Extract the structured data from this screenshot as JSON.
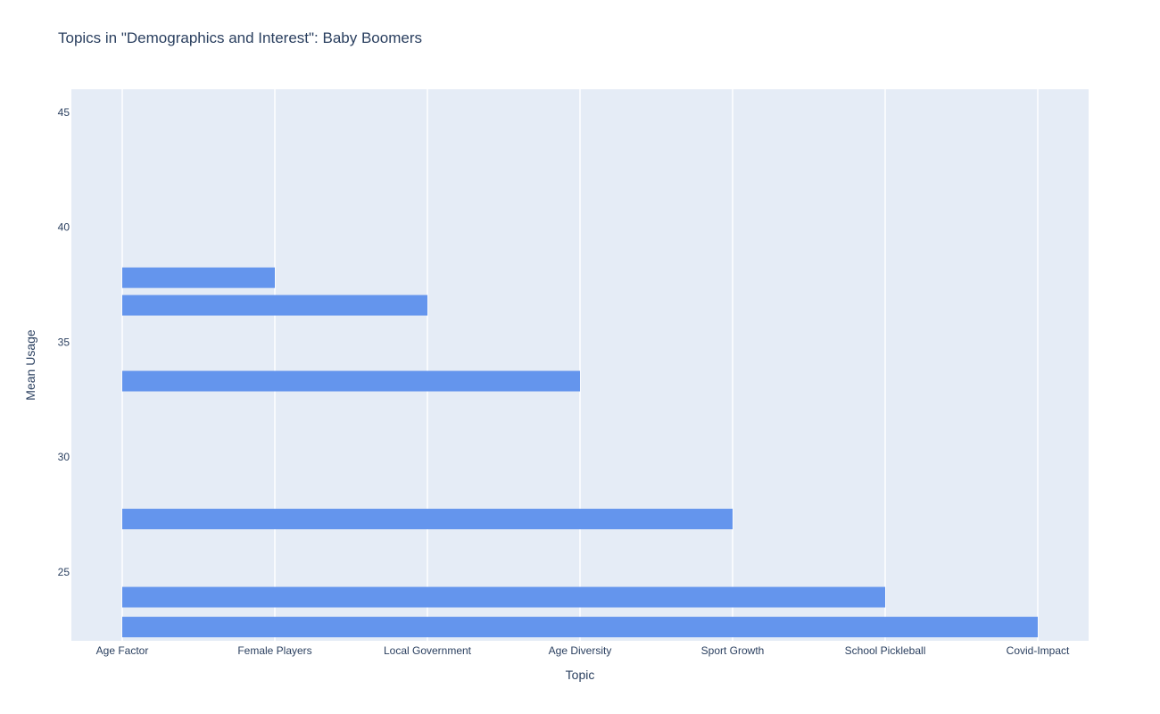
{
  "chart_data": {
    "type": "bar",
    "orientation": "horizontal",
    "title": "Topics in \"Demographics and Interest\": Baby Boomers",
    "xlabel": "Topic",
    "ylabel": "Mean Usage",
    "categories": [
      "Age Factor",
      "Female Players",
      "Local Government",
      "Age Diversity",
      "Sport Growth",
      "School Pickleball",
      "Covid-Impact"
    ],
    "yticks": [
      25,
      30,
      35,
      40,
      45
    ],
    "ylim": [
      22,
      46
    ],
    "bars": [
      {
        "y": 37.8,
        "x_start": "Age Factor",
        "x_end": "Female Players"
      },
      {
        "y": 36.6,
        "x_start": "Age Factor",
        "x_end": "Local Government"
      },
      {
        "y": 33.3,
        "x_start": "Age Factor",
        "x_end": "Age Diversity"
      },
      {
        "y": 27.3,
        "x_start": "Age Factor",
        "x_end": "Sport Growth"
      },
      {
        "y": 23.9,
        "x_start": "Age Factor",
        "x_end": "School Pickleball"
      },
      {
        "y": 22.6,
        "x_start": "Age Factor",
        "x_end": "Covid-Impact"
      }
    ],
    "bar_color": "#6495ed",
    "plot_background": "#e5ecf6",
    "grid": true
  }
}
